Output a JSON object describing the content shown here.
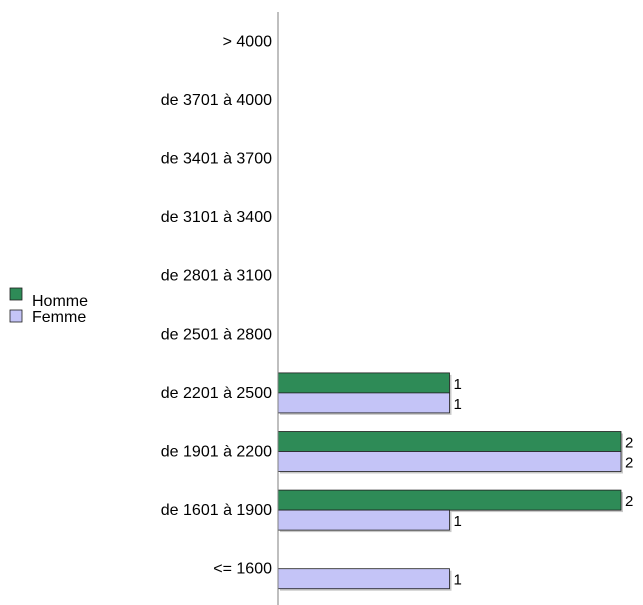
{
  "chart_data": {
    "type": "bar",
    "orientation": "horizontal",
    "categories": [
      "> 4000",
      "de 3701 à 4000",
      "de 3401 à 3700",
      "de 3101 à 3400",
      "de 2801 à 3100",
      "de 2501 à 2800",
      "de 2201 à 2500",
      "de 1901 à 2200",
      "de 1601 à 1900",
      "<= 1600"
    ],
    "series": [
      {
        "name": "Homme",
        "color": "#2e8b57",
        "values": [
          0,
          0,
          0,
          0,
          0,
          0,
          1,
          2,
          2,
          0
        ]
      },
      {
        "name": "Femme",
        "color": "#c4c4f7",
        "values": [
          0,
          0,
          0,
          0,
          0,
          0,
          1,
          2,
          1,
          1
        ]
      }
    ],
    "xlim": [
      0,
      2
    ],
    "grid": false,
    "legend_position": "left"
  }
}
